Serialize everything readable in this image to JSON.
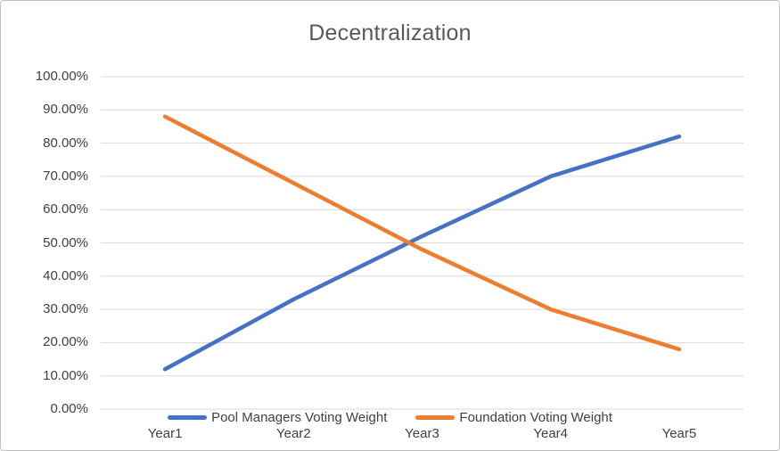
{
  "chart_data": {
    "type": "line",
    "title": "Decentralization",
    "categories": [
      "Year1",
      "Year2",
      "Year3",
      "Year4",
      "Year5"
    ],
    "series": [
      {
        "name": "Pool Managers Voting Weight",
        "color": "#4472C4",
        "values": [
          12,
          33,
          52,
          70,
          82
        ]
      },
      {
        "name": "Foundation Voting Weight",
        "color": "#ED7D31",
        "values": [
          88,
          68,
          48,
          30,
          18
        ]
      }
    ],
    "xlabel": "",
    "ylabel": "",
    "ylim": [
      0,
      100
    ],
    "y_tick_step": 10,
    "y_tick_labels": [
      "0.00%",
      "10.00%",
      "20.00%",
      "30.00%",
      "40.00%",
      "50.00%",
      "60.00%",
      "70.00%",
      "80.00%",
      "90.00%",
      "100.00%"
    ],
    "grid": true,
    "gridline_color": "#D9D9D9",
    "legend_position": "bottom",
    "title_color": "#595959",
    "axis_label_color": "#404040",
    "background_color": "#FFFFFF"
  }
}
